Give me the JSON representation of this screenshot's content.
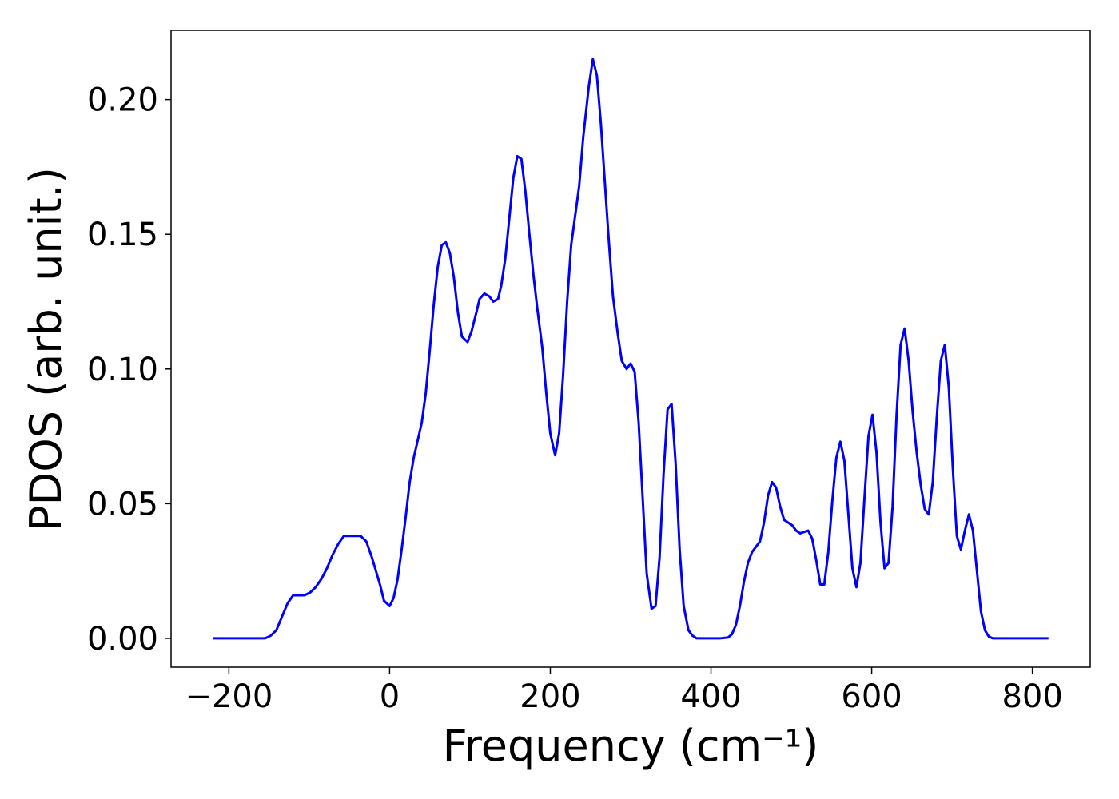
{
  "chart_data": {
    "type": "line",
    "xlabel": "Frequency (cm⁻¹)",
    "ylabel": "PDOS (arb. unit.)",
    "x": [
      -220,
      -155,
      -148,
      -141,
      -134,
      -127,
      -120,
      -113,
      -106,
      -99,
      -92,
      -85,
      -78,
      -71,
      -64,
      -57,
      -50,
      -43,
      -36,
      -29,
      -22,
      -12,
      -7,
      0,
      5,
      10,
      15,
      20,
      25,
      30,
      40,
      45,
      50,
      55,
      60,
      65,
      70,
      75,
      80,
      85,
      90,
      97,
      102,
      108,
      112,
      118,
      124,
      129,
      135,
      139,
      144,
      149,
      154,
      159,
      164,
      169,
      174,
      179,
      184,
      190,
      195,
      200,
      206,
      211,
      216,
      221,
      226,
      231,
      236,
      241,
      248,
      253,
      258,
      263,
      268,
      273,
      278,
      284,
      289,
      295,
      300,
      305,
      310,
      315,
      320,
      326,
      331,
      336,
      341,
      346,
      351,
      356,
      361,
      366,
      372,
      377,
      382,
      411,
      421,
      426,
      431,
      436,
      441,
      446,
      451,
      461,
      466,
      471,
      476,
      481,
      486,
      491,
      496,
      501,
      506,
      511,
      521,
      526,
      531,
      536,
      541,
      546,
      551,
      556,
      561,
      566,
      571,
      576,
      581,
      586,
      591,
      596,
      601,
      606,
      611,
      616,
      621,
      626,
      631,
      636,
      641,
      646,
      651,
      656,
      661,
      666,
      671,
      676,
      681,
      686,
      691,
      696,
      701,
      706,
      711,
      716,
      721,
      726,
      731,
      736,
      741,
      746,
      751,
      820
    ],
    "series": [
      {
        "name": "PDOS",
        "color": "#0000ff",
        "values": [
          0,
          0,
          0.001,
          0.003,
          0.008,
          0.013,
          0.016,
          0.016,
          0.016,
          0.017,
          0.019,
          0.022,
          0.026,
          0.031,
          0.035,
          0.038,
          0.038,
          0.038,
          0.038,
          0.036,
          0.03,
          0.02,
          0.014,
          0.012,
          0.015,
          0.022,
          0.033,
          0.045,
          0.058,
          0.067,
          0.08,
          0.091,
          0.107,
          0.124,
          0.138,
          0.146,
          0.147,
          0.143,
          0.134,
          0.121,
          0.112,
          0.11,
          0.114,
          0.121,
          0.126,
          0.128,
          0.127,
          0.125,
          0.126,
          0.131,
          0.141,
          0.156,
          0.171,
          0.179,
          0.178,
          0.166,
          0.15,
          0.135,
          0.122,
          0.108,
          0.091,
          0.076,
          0.068,
          0.076,
          0.098,
          0.125,
          0.146,
          0.157,
          0.168,
          0.186,
          0.205,
          0.215,
          0.209,
          0.191,
          0.169,
          0.147,
          0.127,
          0.113,
          0.103,
          0.1,
          0.102,
          0.099,
          0.08,
          0.052,
          0.024,
          0.011,
          0.012,
          0.03,
          0.061,
          0.085,
          0.087,
          0.065,
          0.033,
          0.012,
          0.003,
          0.001,
          0,
          0,
          0.0003,
          0.0015,
          0.005,
          0.012,
          0.021,
          0.028,
          0.032,
          0.036,
          0.043,
          0.053,
          0.058,
          0.056,
          0.049,
          0.044,
          0.043,
          0.042,
          0.04,
          0.039,
          0.04,
          0.037,
          0.029,
          0.02,
          0.02,
          0.032,
          0.051,
          0.067,
          0.073,
          0.066,
          0.046,
          0.026,
          0.019,
          0.028,
          0.052,
          0.075,
          0.083,
          0.069,
          0.043,
          0.026,
          0.028,
          0.049,
          0.083,
          0.109,
          0.115,
          0.103,
          0.084,
          0.069,
          0.057,
          0.048,
          0.046,
          0.058,
          0.082,
          0.103,
          0.109,
          0.093,
          0.063,
          0.038,
          0.033,
          0.04,
          0.046,
          0.04,
          0.025,
          0.01,
          0.003,
          0.0006,
          0,
          0
        ]
      }
    ],
    "xlim": [
      -272,
      872
    ],
    "ylim": [
      -0.0107,
      0.2257
    ],
    "xticks": [
      {
        "value": -200,
        "label": "−200"
      },
      0,
      200,
      400,
      600,
      800
    ],
    "yticks": [
      {
        "value": 0,
        "label": "0.00"
      },
      {
        "value": 0.05,
        "label": "0.05"
      },
      {
        "value": 0.1,
        "label": "0.10"
      },
      {
        "value": 0.15,
        "label": "0.15"
      },
      {
        "value": 0.2,
        "label": "0.20"
      }
    ],
    "grid": false
  }
}
